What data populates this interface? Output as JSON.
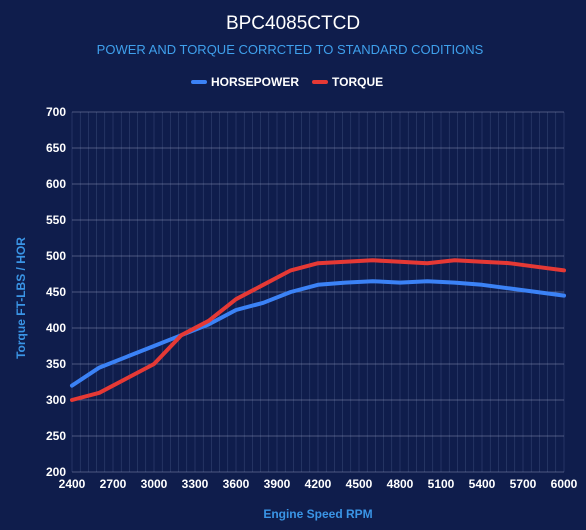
{
  "chart_data": {
    "type": "line",
    "title": "BPC4085CTCD",
    "subtitle": "POWER AND TORQUE CORRCTED TO STANDARD CODITIONS",
    "xlabel": "Engine Speed RPM",
    "ylabel": "Torque FT-LBS / HOR",
    "xlim": [
      2400,
      6000
    ],
    "ylim": [
      200,
      700
    ],
    "x_ticks": [
      2400,
      2700,
      3000,
      3300,
      3600,
      3900,
      4200,
      4500,
      4800,
      5100,
      5400,
      5700,
      6000
    ],
    "y_ticks": [
      200,
      250,
      300,
      350,
      400,
      450,
      500,
      550,
      600,
      650,
      700
    ],
    "grid": true,
    "legend_position": "top",
    "x": [
      2400,
      2600,
      2800,
      3000,
      3200,
      3400,
      3600,
      3800,
      4000,
      4200,
      4400,
      4600,
      4800,
      5000,
      5200,
      5400,
      5600,
      5800,
      6000
    ],
    "series": [
      {
        "name": "HORSEPOWER",
        "color": "#3b82f6",
        "values": [
          320,
          345,
          360,
          375,
          390,
          405,
          425,
          435,
          450,
          460,
          463,
          465,
          463,
          465,
          463,
          460,
          455,
          450,
          445
        ]
      },
      {
        "name": "TORQUE",
        "color": "#e53935",
        "values": [
          300,
          310,
          330,
          350,
          390,
          410,
          440,
          460,
          480,
          490,
          492,
          494,
          492,
          490,
          494,
          492,
          490,
          485,
          480
        ]
      }
    ]
  }
}
